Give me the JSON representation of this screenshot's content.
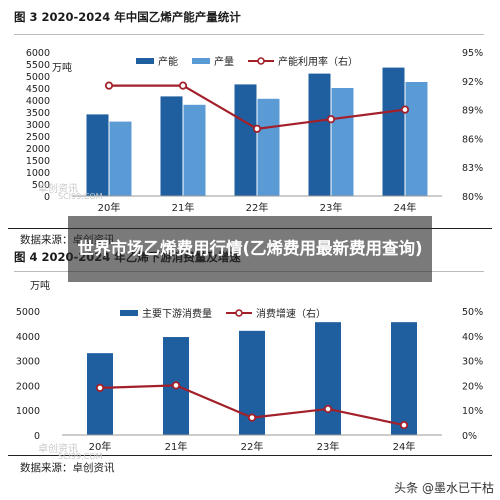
{
  "chart_data": [
    {
      "type": "bar",
      "title": "图 3 2020-2024 年中国乙烯产能产量统计",
      "unit_label": "万吨",
      "categories": [
        "20年",
        "21年",
        "22年",
        "23年",
        "24年"
      ],
      "series": [
        {
          "name": "产能",
          "kind": "bar",
          "axis": "left",
          "color": "#1f5fa0",
          "values": [
            3400,
            4150,
            4650,
            5100,
            5350
          ]
        },
        {
          "name": "产量",
          "kind": "bar",
          "axis": "left",
          "color": "#5b9bd5",
          "values": [
            3100,
            3800,
            4050,
            4500,
            4750
          ]
        },
        {
          "name": "产能利用率（右）",
          "kind": "line",
          "axis": "right",
          "color": "#a3202a",
          "values": [
            91.5,
            91.5,
            87,
            88,
            89
          ]
        }
      ],
      "ylim": [
        0,
        6000
      ],
      "yticks": [
        "0",
        "500",
        "1000",
        "1500",
        "2000",
        "2500",
        "3000",
        "3500",
        "4000",
        "4500",
        "5000",
        "5500",
        "6000"
      ],
      "y2lim": [
        80,
        95
      ],
      "y2ticks": [
        "80%",
        "83%",
        "86%",
        "89%",
        "92%",
        "95%"
      ],
      "legend_position": "top",
      "grid": false,
      "source": "数据来源：卓创资讯"
    },
    {
      "type": "bar",
      "title": "图 4 2020-2024 年乙烯下游消费量及增速",
      "unit_label": "万吨",
      "categories": [
        "20年",
        "21年",
        "22年",
        "23年",
        "24年"
      ],
      "series": [
        {
          "name": "主要下游消费量",
          "kind": "bar",
          "axis": "left",
          "color": "#1f5fa0",
          "values": [
            3300,
            3950,
            4200,
            4550,
            4550
          ]
        },
        {
          "name": "消费增速（右）",
          "kind": "line",
          "axis": "right",
          "color": "#a3202a",
          "values": [
            19,
            20,
            7,
            10.5,
            4
          ]
        }
      ],
      "ylim": [
        0,
        5000
      ],
      "yticks": [
        "0",
        "1000",
        "2000",
        "3000",
        "4000",
        "5000"
      ],
      "y2lim": [
        0,
        50
      ],
      "y2ticks": [
        "0%",
        "10%",
        "20%",
        "30%",
        "40%",
        "50%"
      ],
      "legend_position": "top",
      "grid": false,
      "source": "数据来源：卓创资讯"
    }
  ],
  "overlay": {
    "banner_text": "世界市场乙烯费用行情(乙烯费用最新费用查询)",
    "watermarks": [
      "卓创资讯",
      "SCI99.COM"
    ],
    "footer": "头条 @墨水已干枯"
  }
}
